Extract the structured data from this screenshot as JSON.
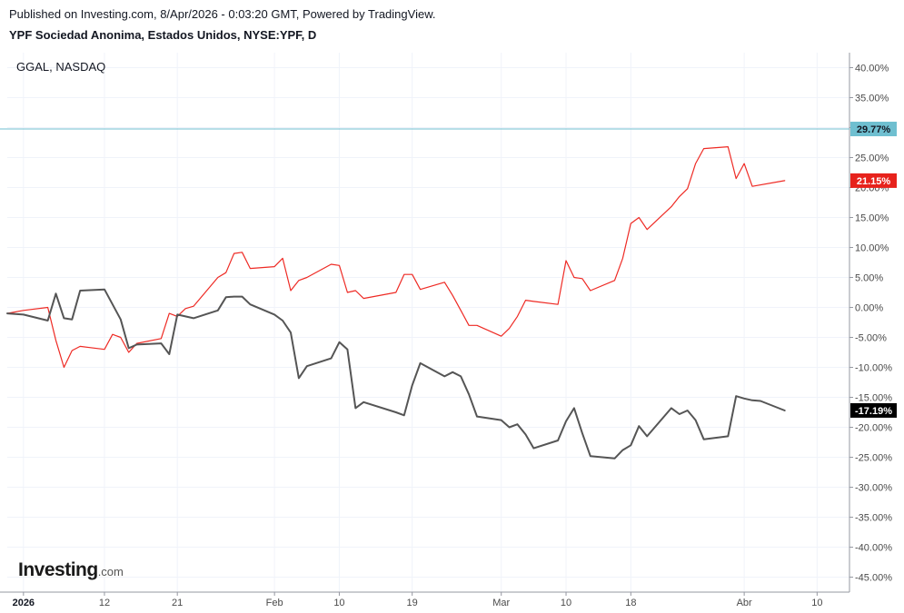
{
  "header": {
    "published": "Published on Investing.com, 8/Apr/2026 - 0:03:20 GMT, Powered by TradingView.",
    "symbol_title": "YPF Sociedad Anonima, Estados Unidos, NYSE:YPF, D"
  },
  "logo": {
    "main": "Investing",
    "suffix": ".com"
  },
  "chart_data": {
    "type": "line",
    "legend": {
      "text": "GGAL, NASDAQ",
      "placement": "top-left"
    },
    "y_unit": "%",
    "ylim": [
      -47.5,
      42.5
    ],
    "yticks": [
      40,
      35,
      30,
      25,
      20,
      15,
      10,
      5,
      0,
      -5,
      -10,
      -15,
      -20,
      -25,
      -30,
      -35,
      -40,
      -45
    ],
    "ytick_labels": [
      "40.00%",
      "35.00%",
      "30.00%",
      "25.00%",
      "20.00%",
      "15.00%",
      "10.00%",
      "5.00%",
      "0.00%",
      "-5.00%",
      "-10.00%",
      "-15.00%",
      "-20.00%",
      "-25.00%",
      "-30.00%",
      "-35.00%",
      "-40.00%",
      "-45.00%"
    ],
    "xlim": [
      "2025-12-31",
      "2026-04-14"
    ],
    "xticks": [
      {
        "date": "2026-01-02",
        "label": "2026",
        "bold": true
      },
      {
        "date": "2026-01-12",
        "label": "12",
        "bold": false
      },
      {
        "date": "2026-01-21",
        "label": "21",
        "bold": false
      },
      {
        "date": "2026-02-02",
        "label": "Feb",
        "bold": false
      },
      {
        "date": "2026-02-10",
        "label": "10",
        "bold": false
      },
      {
        "date": "2026-02-19",
        "label": "19",
        "bold": false
      },
      {
        "date": "2026-03-02",
        "label": "Mar",
        "bold": false
      },
      {
        "date": "2026-03-10",
        "label": "10",
        "bold": false
      },
      {
        "date": "2026-03-18",
        "label": "18",
        "bold": false
      },
      {
        "date": "2026-04-01",
        "label": "Abr",
        "bold": false
      },
      {
        "date": "2026-04-10",
        "label": "10",
        "bold": false
      }
    ],
    "grid": true,
    "reference_line": {
      "value": 29.77,
      "label": "29.77%",
      "color": "#6fbfd0"
    },
    "series": [
      {
        "name": "",
        "color": "#ee2a24",
        "last_label": "21.15%",
        "points": [
          [
            "2025-12-31",
            -1.0
          ],
          [
            "2026-01-02",
            -0.5
          ],
          [
            "2026-01-05",
            0.0
          ],
          [
            "2026-01-06",
            -5.5
          ],
          [
            "2026-01-07",
            -10.0
          ],
          [
            "2026-01-08",
            -7.2
          ],
          [
            "2026-01-09",
            -6.5
          ],
          [
            "2026-01-12",
            -7.0
          ],
          [
            "2026-01-13",
            -4.5
          ],
          [
            "2026-01-14",
            -5.0
          ],
          [
            "2026-01-15",
            -7.5
          ],
          [
            "2026-01-16",
            -6.0
          ],
          [
            "2026-01-19",
            -5.2
          ],
          [
            "2026-01-20",
            -1.0
          ],
          [
            "2026-01-21",
            -1.5
          ],
          [
            "2026-01-22",
            -0.2
          ],
          [
            "2026-01-23",
            0.2
          ],
          [
            "2026-01-26",
            5.0
          ],
          [
            "2026-01-27",
            5.8
          ],
          [
            "2026-01-28",
            9.0
          ],
          [
            "2026-01-29",
            9.2
          ],
          [
            "2026-01-30",
            6.5
          ],
          [
            "2026-02-02",
            6.8
          ],
          [
            "2026-02-03",
            8.2
          ],
          [
            "2026-02-04",
            2.8
          ],
          [
            "2026-02-05",
            4.5
          ],
          [
            "2026-02-06",
            5.0
          ],
          [
            "2026-02-09",
            7.2
          ],
          [
            "2026-02-10",
            7.0
          ],
          [
            "2026-02-11",
            2.5
          ],
          [
            "2026-02-12",
            2.8
          ],
          [
            "2026-02-13",
            1.5
          ],
          [
            "2026-02-17",
            2.5
          ],
          [
            "2026-02-18",
            5.5
          ],
          [
            "2026-02-19",
            5.5
          ],
          [
            "2026-02-20",
            3.0
          ],
          [
            "2026-02-23",
            4.2
          ],
          [
            "2026-02-24",
            2.0
          ],
          [
            "2026-02-25",
            -0.5
          ],
          [
            "2026-02-26",
            -3.0
          ],
          [
            "2026-02-27",
            -3.0
          ],
          [
            "2026-03-02",
            -4.8
          ],
          [
            "2026-03-03",
            -3.5
          ],
          [
            "2026-03-04",
            -1.5
          ],
          [
            "2026-03-05",
            1.2
          ],
          [
            "2026-03-06",
            1.0
          ],
          [
            "2026-03-09",
            0.5
          ],
          [
            "2026-03-10",
            7.8
          ],
          [
            "2026-03-11",
            5.0
          ],
          [
            "2026-03-12",
            4.8
          ],
          [
            "2026-03-13",
            2.8
          ],
          [
            "2026-03-16",
            4.5
          ],
          [
            "2026-03-17",
            8.2
          ],
          [
            "2026-03-18",
            14.0
          ],
          [
            "2026-03-19",
            15.0
          ],
          [
            "2026-03-20",
            13.0
          ],
          [
            "2026-03-23",
            16.8
          ],
          [
            "2026-03-24",
            18.5
          ],
          [
            "2026-03-25",
            19.8
          ],
          [
            "2026-03-26",
            24.0
          ],
          [
            "2026-03-27",
            26.5
          ],
          [
            "2026-03-30",
            26.8
          ],
          [
            "2026-03-31",
            21.5
          ],
          [
            "2026-04-01",
            24.0
          ],
          [
            "2026-04-02",
            20.2
          ],
          [
            "2026-04-06",
            21.15
          ]
        ]
      },
      {
        "name": "GGAL, NASDAQ",
        "color": "#555555",
        "last_label": "-17.19%",
        "points": [
          [
            "2025-12-31",
            -1.0
          ],
          [
            "2026-01-02",
            -1.2
          ],
          [
            "2026-01-05",
            -2.2
          ],
          [
            "2026-01-06",
            2.3
          ],
          [
            "2026-01-07",
            -1.8
          ],
          [
            "2026-01-08",
            -2.0
          ],
          [
            "2026-01-09",
            2.8
          ],
          [
            "2026-01-12",
            3.0
          ],
          [
            "2026-01-13",
            0.5
          ],
          [
            "2026-01-14",
            -2.0
          ],
          [
            "2026-01-15",
            -6.8
          ],
          [
            "2026-01-16",
            -6.2
          ],
          [
            "2026-01-19",
            -6.0
          ],
          [
            "2026-01-20",
            -7.8
          ],
          [
            "2026-01-21",
            -1.2
          ],
          [
            "2026-01-22",
            -1.5
          ],
          [
            "2026-01-23",
            -1.8
          ],
          [
            "2026-01-26",
            -0.5
          ],
          [
            "2026-01-27",
            1.7
          ],
          [
            "2026-01-28",
            1.8
          ],
          [
            "2026-01-29",
            1.8
          ],
          [
            "2026-01-30",
            0.5
          ],
          [
            "2026-02-02",
            -1.2
          ],
          [
            "2026-02-03",
            -2.2
          ],
          [
            "2026-02-04",
            -4.2
          ],
          [
            "2026-02-05",
            -11.8
          ],
          [
            "2026-02-06",
            -9.8
          ],
          [
            "2026-02-09",
            -8.5
          ],
          [
            "2026-02-10",
            -5.8
          ],
          [
            "2026-02-11",
            -7.0
          ],
          [
            "2026-02-12",
            -16.8
          ],
          [
            "2026-02-13",
            -15.8
          ],
          [
            "2026-02-17",
            -17.5
          ],
          [
            "2026-02-18",
            -18.0
          ],
          [
            "2026-02-19",
            -13.0
          ],
          [
            "2026-02-20",
            -9.3
          ],
          [
            "2026-02-23",
            -11.5
          ],
          [
            "2026-02-24",
            -10.8
          ],
          [
            "2026-02-25",
            -11.5
          ],
          [
            "2026-02-26",
            -14.5
          ],
          [
            "2026-02-27",
            -18.2
          ],
          [
            "2026-03-02",
            -18.8
          ],
          [
            "2026-03-03",
            -20.0
          ],
          [
            "2026-03-04",
            -19.5
          ],
          [
            "2026-03-05",
            -21.2
          ],
          [
            "2026-03-06",
            -23.5
          ],
          [
            "2026-03-09",
            -22.2
          ],
          [
            "2026-03-10",
            -19.0
          ],
          [
            "2026-03-11",
            -16.8
          ],
          [
            "2026-03-12",
            -21.0
          ],
          [
            "2026-03-13",
            -24.8
          ],
          [
            "2026-03-16",
            -25.2
          ],
          [
            "2026-03-17",
            -23.8
          ],
          [
            "2026-03-18",
            -23.0
          ],
          [
            "2026-03-19",
            -19.8
          ],
          [
            "2026-03-20",
            -21.5
          ],
          [
            "2026-03-23",
            -16.8
          ],
          [
            "2026-03-24",
            -17.8
          ],
          [
            "2026-03-25",
            -17.2
          ],
          [
            "2026-03-26",
            -18.8
          ],
          [
            "2026-03-27",
            -22.0
          ],
          [
            "2026-03-30",
            -21.5
          ],
          [
            "2026-03-31",
            -14.8
          ],
          [
            "2026-04-01",
            -15.2
          ],
          [
            "2026-04-02",
            -15.5
          ],
          [
            "2026-04-03",
            -15.6
          ],
          [
            "2026-04-06",
            -17.19
          ]
        ]
      }
    ]
  }
}
